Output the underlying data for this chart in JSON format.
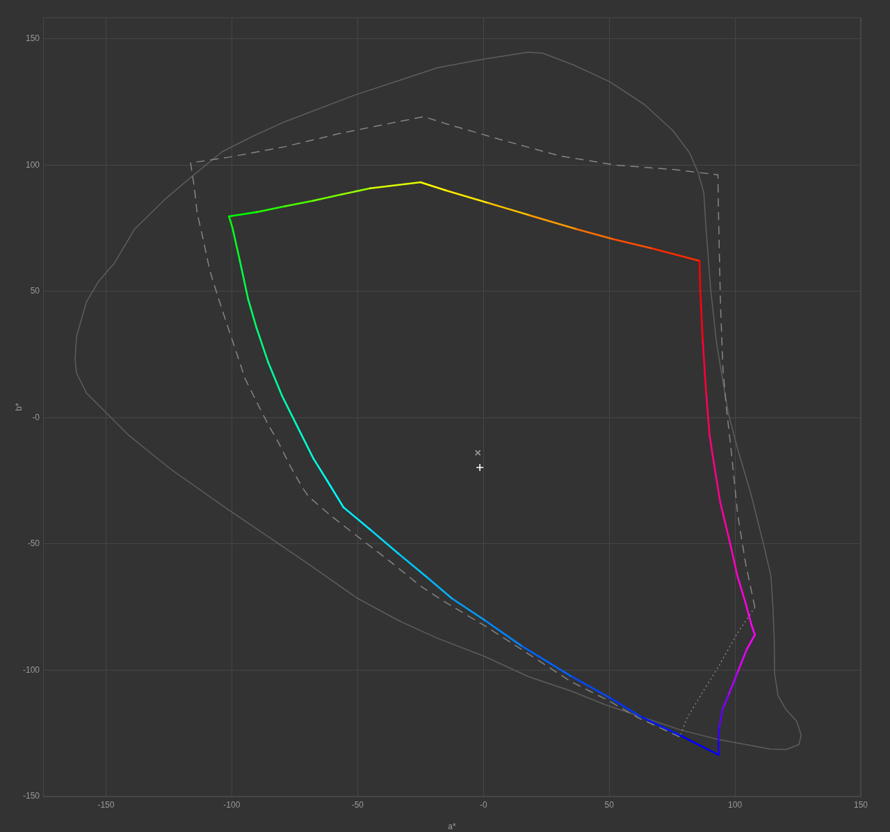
{
  "chart_data": {
    "type": "line",
    "xlabel": "a*",
    "ylabel": "b*",
    "xlim": [
      -175,
      150
    ],
    "ylim": [
      -150,
      158.5
    ],
    "xticks": [
      -150,
      -100,
      -50,
      {
        "value": 0,
        "label": "-0"
      },
      50,
      100,
      150
    ],
    "yticks": [
      -150,
      -100,
      -50,
      {
        "value": 0,
        "label": "-0"
      },
      50,
      100,
      150
    ],
    "grid": true,
    "marker": "none",
    "line_style": "solid",
    "series": [
      {
        "type": "line",
        "color": "#5e5e5e",
        "x": [
          -162.3,
          -161.7,
          -157.8,
          -153.2,
          -146.5,
          -138.6,
          -126.2,
          -116.1,
          -103.7,
          -91.3,
          -78.9,
          -50.7,
          -18.1,
          -0.3,
          17.8,
          23.4,
          35.8,
          50.4,
          64.0,
          75.2,
          82.0,
          85.4,
          87.6,
          88.5,
          90.3,
          92.6,
          95.2,
          97.4,
          101.0,
          106.3,
          111.1,
          114.3,
          115.1,
          115.6,
          115.7,
          117.1,
          120.3,
          124.5,
          126.3,
          125.4,
          120.3,
          113.9,
          104.7,
          93.7
        ],
        "values": [
          23.3,
          32.2,
          45.8,
          53.6,
          61.5,
          74.7,
          86.8,
          95.3,
          105.4,
          111.6,
          117.2,
          127.9,
          138.6,
          141.9,
          144.7,
          144.4,
          139.7,
          132.9,
          124.0,
          113.8,
          104.8,
          96.9,
          89.1,
          74.7,
          51.2,
          30.1,
          14.3,
          1.6,
          -12.2,
          -30.1,
          -49.1,
          -62.8,
          -75.5,
          -88.0,
          -100.9,
          -110.1,
          -115.6,
          -120.2,
          -125.7,
          -129.4,
          -131.4,
          -131.2,
          -129.5,
          -127.5
        ]
      },
      {
        "type": "line",
        "color": "#5e5e5e",
        "x": [
          93.7,
          78.9,
          62.4,
          48.6,
          34.8,
          17.8,
          0.4,
          -18.3,
          -32.8,
          -50.1,
          -69.9,
          -101.4,
          -124.0,
          -140.8,
          -149.9,
          -157.8,
          -161.7,
          -162.3
        ],
        "values": [
          -127.5,
          -123.8,
          -118.3,
          -113.7,
          -108.2,
          -102.5,
          -94.5,
          -87.3,
          -80.8,
          -71.5,
          -57.7,
          -36.4,
          -20.6,
          -7.1,
          1.9,
          9.8,
          17.6,
          23.3
        ]
      },
      {
        "type": "line",
        "color": "#868686",
        "line_style": "dashed",
        "x": [
          78.0,
          61.5,
          49.5,
          34.8,
          14.9,
          0.4,
          -15.4,
          -24.8,
          -36.1,
          -48.5,
          -60.9,
          -69.6,
          -72.1,
          -76.6,
          -81.1,
          -85.6,
          -90.2,
          -94.7,
          -99.2,
          -102.6,
          -105.9,
          -108.7,
          -111.6,
          -113.8,
          -114.9,
          -116.4,
          -101.4,
          -78.9,
          -56.4,
          -33.8,
          -23.7,
          -14.9,
          7.6,
          30.2,
          52.7,
          75.2,
          93.2,
          93.4,
          94.2,
          95.2,
          96.6,
          98.4,
          101.1,
          104.2,
          107.9
        ],
        "values": [
          -126.4,
          -118.8,
          -111.9,
          -104.5,
          -91.6,
          -82.3,
          -72.9,
          -66.8,
          -57.7,
          -48.2,
          -38.6,
          -31.1,
          -27.4,
          -19.5,
          -10.5,
          -2.6,
          6.4,
          15.4,
          28.9,
          39.0,
          49.1,
          58.1,
          71.6,
          81.2,
          91.3,
          100.9,
          103.1,
          107.3,
          112.7,
          117.2,
          119.2,
          116.4,
          109.9,
          103.7,
          100.0,
          98.3,
          96.2,
          82.9,
          45.9,
          19.5,
          3.7,
          -12.2,
          -38.6,
          -57.6,
          -75.1
        ]
      },
      {
        "type": "line",
        "color": "#868686",
        "line_style": "dotted",
        "x": [
          107.9,
          101.0,
          93.7,
          86.3,
          80.8,
          78.0
        ],
        "values": [
          -75.1,
          -85.2,
          -98.1,
          -110.1,
          -119.2,
          -126.4
        ]
      },
      {
        "type": "line",
        "color": "#00ff00",
        "x": [
          -101.1,
          -90.2
        ],
        "values": [
          79.7,
          81.4
        ]
      },
      {
        "type": "line",
        "color": "#24ff00",
        "x": [
          -90.2,
          -78.9
        ],
        "values": [
          81.4,
          83.7
        ]
      },
      {
        "type": "line",
        "color": "#4aff00",
        "x": [
          -78.9,
          -67.6
        ],
        "values": [
          83.7,
          85.9
        ]
      },
      {
        "type": "line",
        "color": "#70ff00",
        "x": [
          -67.6,
          -56.4
        ],
        "values": [
          85.9,
          88.4
        ]
      },
      {
        "type": "line",
        "color": "#96ff00",
        "x": [
          -56.4,
          -45.1
        ],
        "values": [
          88.4,
          90.8
        ]
      },
      {
        "type": "line",
        "color": "#deff00",
        "x": [
          -45.1,
          -25.0
        ],
        "values": [
          90.8,
          93.2
        ]
      },
      {
        "type": "line",
        "color": "#ffff00",
        "x": [
          -25.0,
          -14.9
        ],
        "values": [
          93.2,
          90.0
        ]
      },
      {
        "type": "line",
        "color": "#ffe800",
        "x": [
          -14.9,
          1.7
        ],
        "values": [
          90.0,
          85.1
        ]
      },
      {
        "type": "line",
        "color": "#ffc200",
        "x": [
          1.7,
          18.2
        ],
        "values": [
          85.1,
          80.2
        ]
      },
      {
        "type": "line",
        "color": "#ff9c00",
        "x": [
          18.2,
          36.9
        ],
        "values": [
          80.2,
          74.7
        ]
      },
      {
        "type": "line",
        "color": "#ff7000",
        "x": [
          36.9,
          51.3
        ],
        "values": [
          74.7,
          70.8
        ]
      },
      {
        "type": "line",
        "color": "#ff4f00",
        "x": [
          51.3,
          67.2
        ],
        "values": [
          70.8,
          67.0
        ]
      },
      {
        "type": "line",
        "color": "#ff2b00",
        "x": [
          67.2,
          85.9
        ],
        "values": [
          67.0,
          62.1
        ]
      },
      {
        "type": "line",
        "color": "#ff0000",
        "x": [
          85.9,
          86.2
        ],
        "values": [
          62.1,
          50.1
        ]
      },
      {
        "type": "line",
        "color": "#ff0014",
        "x": [
          86.2,
          87.2
        ],
        "values": [
          50.1,
          30.1
        ]
      },
      {
        "type": "line",
        "color": "#ff0037",
        "x": [
          87.2,
          88.6
        ],
        "values": [
          30.1,
          9.0
        ]
      },
      {
        "type": "line",
        "color": "#ff005c",
        "x": [
          88.6,
          89.9
        ],
        "values": [
          9.0,
          -6.9
        ]
      },
      {
        "type": "line",
        "color": "#ff0077",
        "x": [
          89.9,
          91.5
        ],
        "values": [
          -6.9,
          -17.4
        ]
      },
      {
        "type": "line",
        "color": "#ff008a",
        "x": [
          91.5,
          94.1
        ],
        "values": [
          -17.4,
          -33.3
        ]
      },
      {
        "type": "line",
        "color": "#ff00a5",
        "x": [
          94.1,
          97.9
        ],
        "values": [
          -33.3,
          -49.1
        ]
      },
      {
        "type": "line",
        "color": "#ff00c0",
        "x": [
          97.9,
          101.0
        ],
        "values": [
          -49.1,
          -62.8
        ]
      },
      {
        "type": "line",
        "color": "#ff00d7",
        "x": [
          101.0,
          104.2
        ],
        "values": [
          -62.8,
          -73.4
        ]
      },
      {
        "type": "line",
        "color": "#ff00e9",
        "x": [
          104.2,
          106.5
        ],
        "values": [
          -73.4,
          -81.9
        ]
      },
      {
        "type": "line",
        "color": "#ff00f8",
        "x": [
          106.5,
          107.9
        ],
        "values": [
          -81.9,
          -86.0
        ]
      },
      {
        "type": "line",
        "color": "#ff00ff",
        "x": [
          107.9,
          104.7
        ],
        "values": [
          -86.0,
          -91.7
        ]
      },
      {
        "type": "line",
        "color": "#e000ff",
        "x": [
          104.7,
          101.0
        ],
        "values": [
          -91.7,
          -100.9
        ]
      },
      {
        "type": "line",
        "color": "#af00ff",
        "x": [
          101.0,
          97.3
        ],
        "values": [
          -100.9,
          -110.1
        ]
      },
      {
        "type": "line",
        "color": "#7e00ff",
        "x": [
          97.3,
          95.0
        ],
        "values": [
          -110.1,
          -115.6
        ]
      },
      {
        "type": "line",
        "color": "#6000ff",
        "x": [
          95.0,
          93.7
        ],
        "values": [
          -115.6,
          -122.9
        ]
      },
      {
        "type": "line",
        "color": "#3900ff",
        "x": [
          93.7,
          93.4
        ],
        "values": [
          -122.9,
          -128.4
        ]
      },
      {
        "type": "line",
        "color": "#1b00ff",
        "x": [
          93.4,
          93.5
        ],
        "values": [
          -128.4,
          -133.5
        ]
      },
      {
        "type": "line",
        "color": "#0000ff",
        "x": [
          93.5,
          78.0
        ],
        "values": [
          -133.5,
          -125.7
        ]
      },
      {
        "type": "line",
        "color": "#001aff",
        "x": [
          78.0,
          62.4
        ],
        "values": [
          -125.7,
          -118.3
        ]
      },
      {
        "type": "line",
        "color": "#0035ff",
        "x": [
          62.4,
          50.4
        ],
        "values": [
          -118.3,
          -111.0
        ]
      },
      {
        "type": "line",
        "color": "#004aff",
        "x": [
          50.4,
          34.8
        ],
        "values": [
          -111.0,
          -102.3
        ]
      },
      {
        "type": "line",
        "color": "#0064ff",
        "x": [
          34.8,
          14.9
        ],
        "values": [
          -102.3,
          -90.2
        ]
      },
      {
        "type": "line",
        "color": "#0086ff",
        "x": [
          14.9,
          0.4
        ],
        "values": [
          -90.2,
          -80.1
        ]
      },
      {
        "type": "line",
        "color": "#009fff",
        "x": [
          0.4,
          -12.6
        ],
        "values": [
          -80.1,
          -71.5
        ]
      },
      {
        "type": "line",
        "color": "#00b5ff",
        "x": [
          -12.6,
          -22.6
        ],
        "values": [
          -71.5,
          -63.0
        ]
      },
      {
        "type": "line",
        "color": "#00c6ff",
        "x": [
          -22.6,
          -33.8
        ],
        "values": [
          -63.0,
          -53.8
        ]
      },
      {
        "type": "line",
        "color": "#00daff",
        "x": [
          -33.8,
          -45.1
        ],
        "values": [
          -53.8,
          -44.2
        ]
      },
      {
        "type": "line",
        "color": "#00edff",
        "x": [
          -45.1,
          -55.6
        ],
        "values": [
          -44.2,
          -35.5
        ]
      },
      {
        "type": "line",
        "color": "#00ffff",
        "x": [
          -55.6,
          -62.0
        ],
        "values": [
          -35.5,
          -25.1
        ]
      },
      {
        "type": "line",
        "color": "#00ffe8",
        "x": [
          -62.0,
          -67.6
        ],
        "values": [
          -25.1,
          -16.1
        ]
      },
      {
        "type": "line",
        "color": "#00ffd3",
        "x": [
          -67.6,
          -74.4
        ],
        "values": [
          -16.1,
          -2.6
        ]
      },
      {
        "type": "line",
        "color": "#00ffb5",
        "x": [
          -74.4,
          -80.0
        ],
        "values": [
          -2.6,
          8.6
        ]
      },
      {
        "type": "line",
        "color": "#00ff9d",
        "x": [
          -80.0,
          -85.6
        ],
        "values": [
          8.6,
          22.1
        ]
      },
      {
        "type": "line",
        "color": "#00ff80",
        "x": [
          -85.6,
          -90.2
        ],
        "values": [
          22.1,
          35.6
        ]
      },
      {
        "type": "line",
        "color": "#00ff62",
        "x": [
          -90.2,
          -93.5
        ],
        "values": [
          35.6,
          46.9
        ]
      },
      {
        "type": "line",
        "color": "#00ff49",
        "x": [
          -93.5,
          -96.9
        ],
        "values": [
          46.9,
          62.6
        ]
      },
      {
        "type": "line",
        "color": "#00ff26",
        "x": [
          -96.9,
          -99.7
        ],
        "values": [
          62.6,
          75.0
        ]
      },
      {
        "type": "line",
        "color": "#00ff0a",
        "x": [
          -99.7,
          -101.1
        ],
        "values": [
          75.0,
          79.7
        ]
      },
      {
        "type": "scatter",
        "color": "#9a9a9a",
        "marker": "x",
        "x": [
          -2.2
        ],
        "values": [
          -13.9
        ]
      },
      {
        "type": "scatter",
        "color": "#ffffff",
        "marker": "cross",
        "x": [
          -1.4
        ],
        "values": [
          -19.7
        ]
      }
    ]
  }
}
